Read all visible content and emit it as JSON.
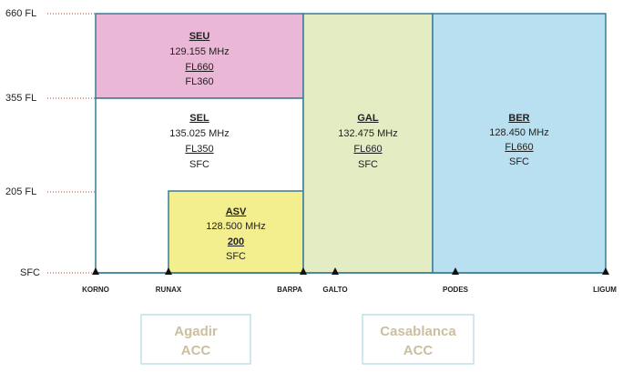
{
  "levels": [
    "660 FL",
    "355 FL",
    "205 FL",
    "SFC"
  ],
  "sectors": [
    {
      "name": "SEU",
      "frequency": "129.155 MHz",
      "upper": "FL660",
      "lower": "FL360"
    },
    {
      "name": "SEL",
      "frequency": "135.025 MHz",
      "upper": "FL350",
      "lower": "SFC"
    },
    {
      "name": "ASV",
      "frequency": "128.500 MHz",
      "upper": "200",
      "lower": "SFC"
    },
    {
      "name": "GAL",
      "frequency": "132.475 MHz",
      "upper": "FL660",
      "lower": "SFC"
    },
    {
      "name": "BER",
      "frequency": "128.450 MHz",
      "upper": "FL660",
      "lower": "SFC"
    }
  ],
  "waypoints": [
    "KORNO",
    "RUNAX",
    "BARPA",
    "GALTO",
    "PODES",
    "LIGUM"
  ],
  "acc": [
    {
      "name": "Agadir",
      "unit": "ACC"
    },
    {
      "name": "Casablanca",
      "unit": "ACC"
    }
  ]
}
